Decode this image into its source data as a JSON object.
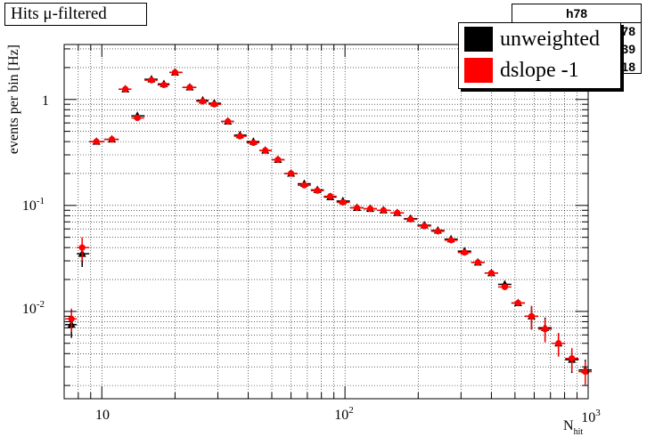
{
  "title": "Hits μ-filtered",
  "stats_box": {
    "name": "h78",
    "rows": [
      "78",
      "39",
      "18"
    ]
  },
  "legend": [
    {
      "label": "unweighted",
      "color": "#000000"
    },
    {
      "label": "dslope -1",
      "color": "#ff0000"
    }
  ],
  "chart_data": {
    "type": "scatter",
    "title": "Hits μ-filtered",
    "xlabel": "N",
    "xlabel_sub": "hit",
    "ylabel": "events per bin [Hz]",
    "xscale": "log",
    "yscale": "log",
    "xlim": [
      7,
      1000
    ],
    "ylim": [
      0.0015,
      3.3
    ],
    "grid": true,
    "x_tick_labels": [
      {
        "base": "10",
        "exp": ""
      },
      {
        "base": "10",
        "exp": "2"
      },
      {
        "base": "10",
        "exp": "3"
      }
    ],
    "y_tick_labels": [
      {
        "base": "10",
        "exp": "-2"
      },
      {
        "base": "10",
        "exp": "-1"
      },
      {
        "base": "1",
        "exp": ""
      }
    ],
    "series": [
      {
        "name": "unweighted",
        "color": "#000000",
        "marker": "triangle",
        "points": [
          [
            7.5,
            0.0075
          ],
          [
            8.3,
            0.035
          ],
          [
            9.5,
            0.4
          ],
          [
            11,
            0.42
          ],
          [
            12.5,
            1.25
          ],
          [
            14,
            0.7
          ],
          [
            16,
            1.55
          ],
          [
            18,
            1.4
          ],
          [
            20,
            1.8
          ],
          [
            23,
            1.3
          ],
          [
            26,
            0.98
          ],
          [
            29,
            0.92
          ],
          [
            33,
            0.62
          ],
          [
            37,
            0.46
          ],
          [
            42,
            0.4
          ],
          [
            47,
            0.33
          ],
          [
            53,
            0.27
          ],
          [
            60,
            0.2
          ],
          [
            68,
            0.16
          ],
          [
            77,
            0.14
          ],
          [
            87,
            0.12
          ],
          [
            98,
            0.11
          ],
          [
            112,
            0.095
          ],
          [
            127,
            0.093
          ],
          [
            144,
            0.09
          ],
          [
            164,
            0.085
          ],
          [
            186,
            0.075
          ],
          [
            212,
            0.065
          ],
          [
            241,
            0.058
          ],
          [
            273,
            0.048
          ],
          [
            310,
            0.037
          ],
          [
            352,
            0.029
          ],
          [
            400,
            0.023
          ],
          [
            454,
            0.018
          ],
          [
            515,
            0.012
          ],
          [
            585,
            0.009
          ],
          [
            665,
            0.007
          ],
          [
            755,
            0.005
          ],
          [
            857,
            0.0035
          ],
          [
            973,
            0.0028
          ]
        ]
      },
      {
        "name": "dslope -1",
        "color": "#ff0000",
        "marker": "circle",
        "points": [
          [
            7.5,
            0.0085
          ],
          [
            8.3,
            0.04
          ],
          [
            9.5,
            0.4
          ],
          [
            11,
            0.42
          ],
          [
            12.5,
            1.25
          ],
          [
            14,
            0.67
          ],
          [
            16,
            1.52
          ],
          [
            18,
            1.37
          ],
          [
            20,
            1.8
          ],
          [
            23,
            1.3
          ],
          [
            26,
            0.96
          ],
          [
            29,
            0.9
          ],
          [
            33,
            0.62
          ],
          [
            37,
            0.45
          ],
          [
            42,
            0.39
          ],
          [
            47,
            0.33
          ],
          [
            53,
            0.27
          ],
          [
            60,
            0.2
          ],
          [
            68,
            0.155
          ],
          [
            77,
            0.138
          ],
          [
            87,
            0.122
          ],
          [
            98,
            0.107
          ],
          [
            112,
            0.095
          ],
          [
            127,
            0.093
          ],
          [
            144,
            0.09
          ],
          [
            164,
            0.085
          ],
          [
            186,
            0.074
          ],
          [
            212,
            0.064
          ],
          [
            241,
            0.057
          ],
          [
            273,
            0.047
          ],
          [
            310,
            0.036
          ],
          [
            352,
            0.029
          ],
          [
            400,
            0.023
          ],
          [
            454,
            0.017
          ],
          [
            515,
            0.012
          ],
          [
            585,
            0.009
          ],
          [
            665,
            0.0068
          ],
          [
            755,
            0.005
          ],
          [
            857,
            0.0036
          ],
          [
            973,
            0.0027
          ]
        ]
      }
    ]
  }
}
